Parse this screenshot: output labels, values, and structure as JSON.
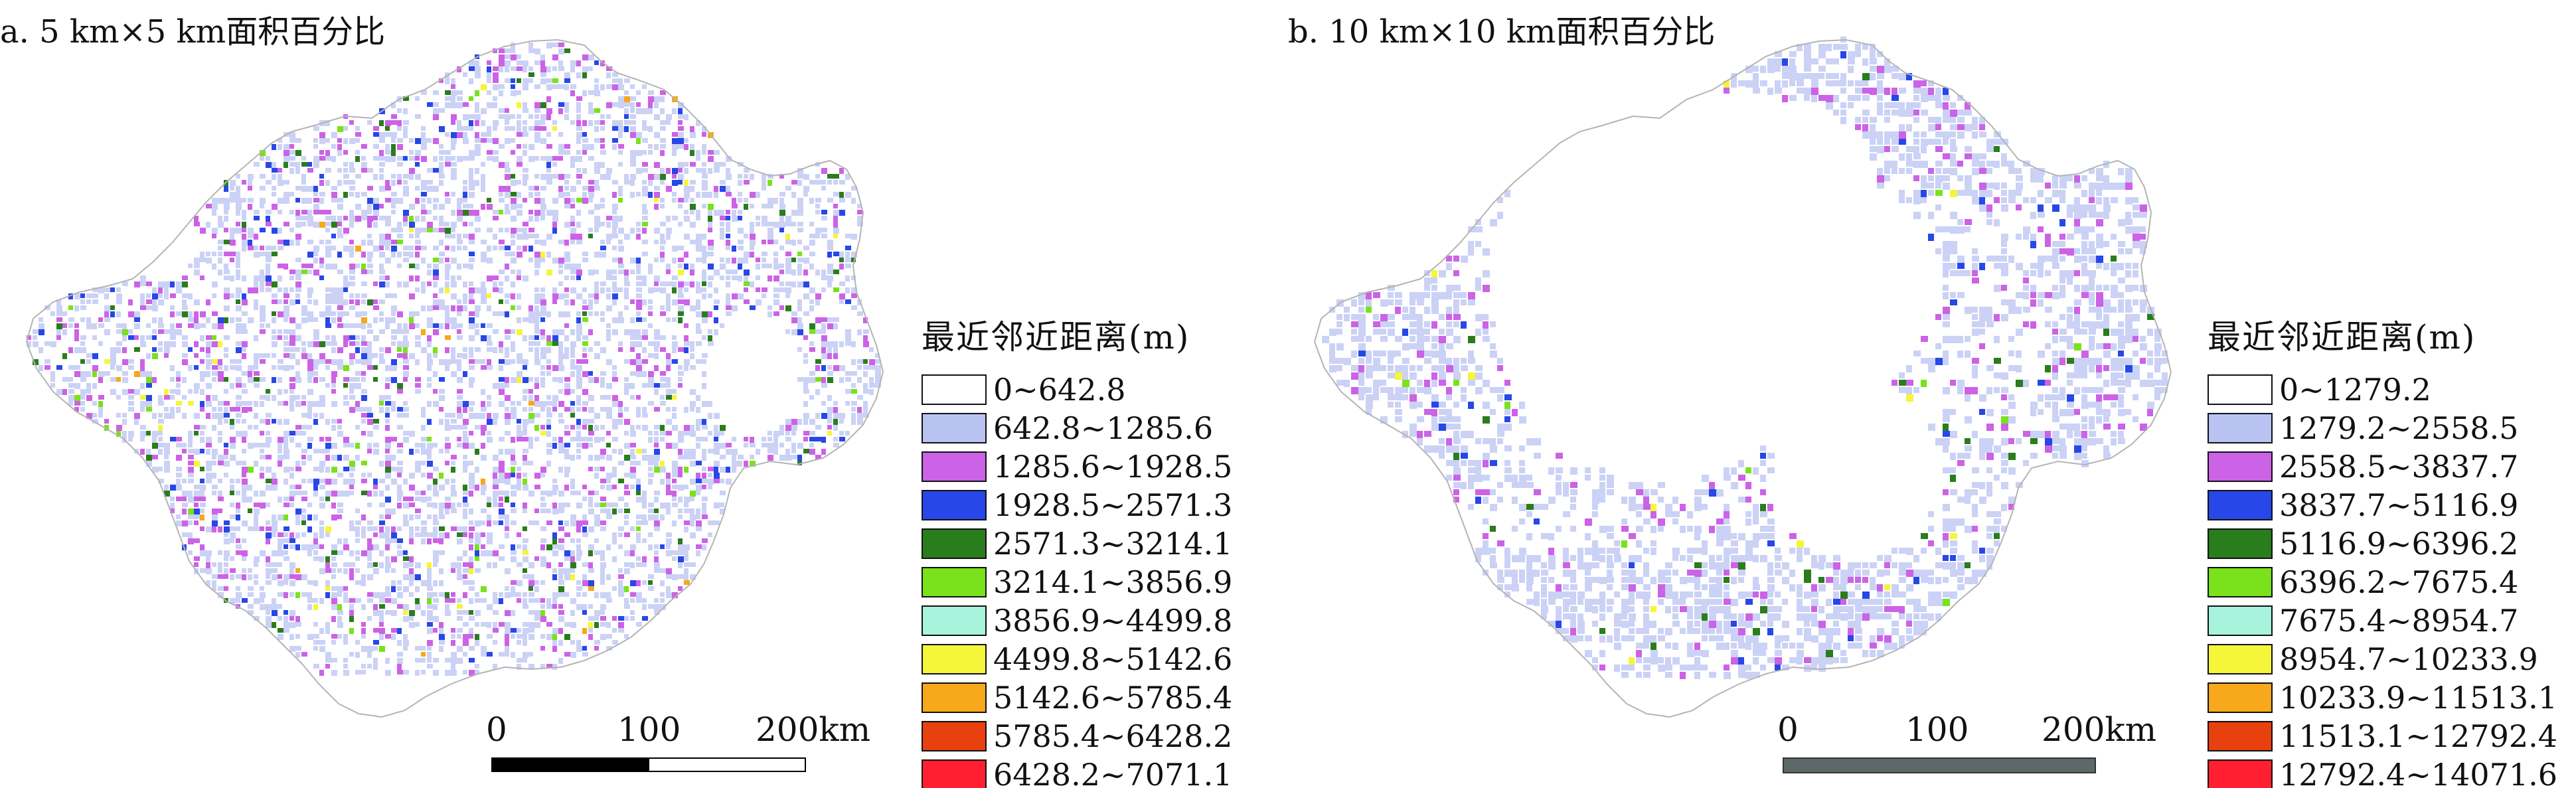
{
  "panels": [
    {
      "title": "a. 5 km×5 km面积百分比",
      "legend": {
        "title": "最近邻近距离(m)",
        "items": [
          {
            "label": "0~642.8",
            "color": "#ffffff"
          },
          {
            "label": "642.8~1285.6",
            "color": "#b9c3f2"
          },
          {
            "label": "1285.6~1928.5",
            "color": "#cc62e6"
          },
          {
            "label": "1928.5~2571.3",
            "color": "#2747e8"
          },
          {
            "label": "2571.3~3214.1",
            "color": "#2a7d1c"
          },
          {
            "label": "3214.1~3856.9",
            "color": "#79e21a"
          },
          {
            "label": "3856.9~4499.8",
            "color": "#a8f3dc"
          },
          {
            "label": "4499.8~5142.6",
            "color": "#f5f53a"
          },
          {
            "label": "5142.6~5785.4",
            "color": "#f7a81b"
          },
          {
            "label": "5785.4~6428.2",
            "color": "#e8400f"
          },
          {
            "label": "6428.2~7071.1",
            "color": "#ff1f30"
          }
        ]
      },
      "scale_bar": {
        "labels": [
          "0",
          "100",
          "200km"
        ],
        "style": "alternating"
      }
    },
    {
      "title": "b. 10 km×10 km面积百分比",
      "legend": {
        "title": "最近邻近距离(m)",
        "items": [
          {
            "label": "0~1279.2",
            "color": "#ffffff"
          },
          {
            "label": "1279.2~2558.5",
            "color": "#b9c3f2"
          },
          {
            "label": "2558.5~3837.7",
            "color": "#cc62e6"
          },
          {
            "label": "3837.7~5116.9",
            "color": "#2747e8"
          },
          {
            "label": "5116.9~6396.2",
            "color": "#2a7d1c"
          },
          {
            "label": "6396.2~7675.4",
            "color": "#79e21a"
          },
          {
            "label": "7675.4~8954.7",
            "color": "#a8f3dc"
          },
          {
            "label": "8954.7~10233.9",
            "color": "#f5f53a"
          },
          {
            "label": "10233.9~11513.1",
            "color": "#f7a81b"
          },
          {
            "label": "11513.1~12792.4",
            "color": "#e8400f"
          },
          {
            "label": "12792.4~14071.6",
            "color": "#ff1f30"
          }
        ]
      },
      "scale_bar": {
        "labels": [
          "0",
          "100",
          "200km"
        ],
        "style": "solid-gray"
      }
    }
  ]
}
